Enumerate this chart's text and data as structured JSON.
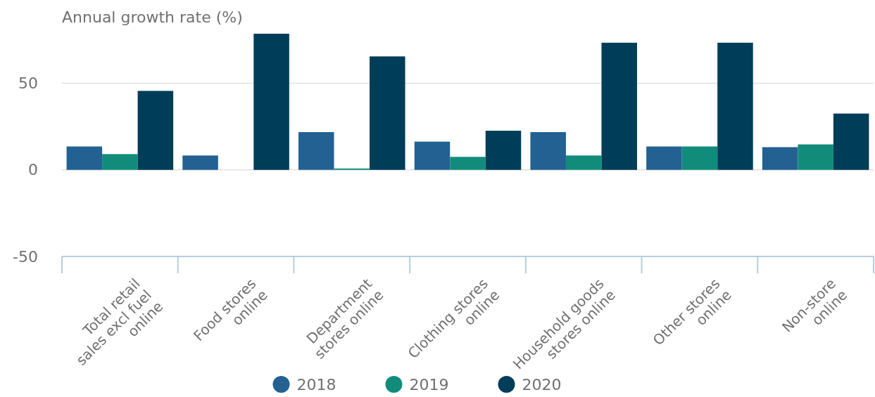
{
  "chart_data": {
    "type": "bar",
    "ylabel": "Annual growth rate (%)",
    "categories": [
      "Total retail sales excl fuel online",
      "Food stores online",
      "Department stores online",
      "Clothing stores online",
      "Household goods stores online",
      "Other stores online",
      "Non-store online"
    ],
    "series": [
      {
        "name": "2018",
        "color": "#236192",
        "values": [
          13.5,
          8.3,
          21.8,
          16.3,
          21.8,
          13.5,
          13.1
        ]
      },
      {
        "name": "2019",
        "color": "#118c7b",
        "values": [
          9.1,
          0,
          0.8,
          7.5,
          8.3,
          13.5,
          14.7
        ]
      },
      {
        "name": "2020",
        "color": "#003d59",
        "values": [
          45.6,
          78.6,
          65.5,
          22.6,
          73.4,
          73.4,
          32.5
        ]
      }
    ],
    "ylim": [
      -50,
      78.6
    ],
    "yticks": [
      50,
      0,
      -50
    ],
    "grid": "y",
    "legend": "bottom"
  }
}
